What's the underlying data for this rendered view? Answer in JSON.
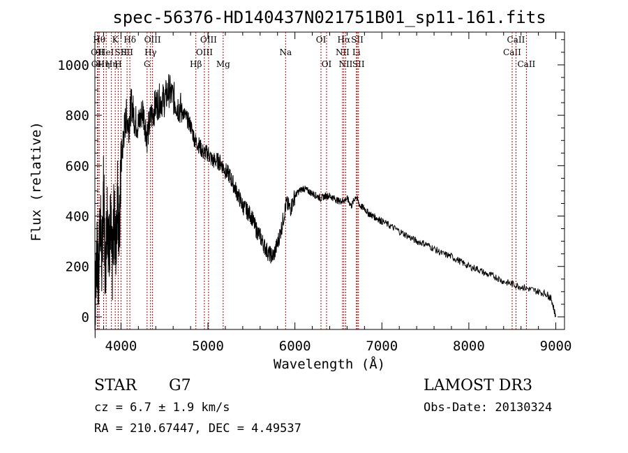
{
  "chart_data": {
    "type": "line",
    "title": "spec-56376-HD140437N021751B01_sp11-161.fits",
    "xlabel": "Wavelength (Å)",
    "ylabel": "Flux (relative)",
    "xlim": [
      3700,
      9100
    ],
    "ylim": [
      -50,
      1130
    ],
    "xticks": [
      4000,
      5000,
      6000,
      7000,
      8000,
      9000
    ],
    "yticks": [
      0,
      200,
      400,
      600,
      800,
      1000
    ],
    "grid": false,
    "line_color": "#000000",
    "marker_color": "#aa0000",
    "series": [
      {
        "x": [
          3700,
          3720,
          3740,
          3760,
          3780,
          3800,
          3820,
          3840,
          3860,
          3880,
          3900,
          3920,
          3940,
          3960,
          3980,
          4000,
          4030,
          4060,
          4090,
          4120,
          4160,
          4200,
          4250,
          4300,
          4350,
          4400,
          4450,
          4500,
          4550,
          4600,
          4650,
          4700,
          4750,
          4800,
          4850,
          4900,
          4950,
          5000,
          5050,
          5100,
          5150,
          5200,
          5250,
          5300,
          5350,
          5400,
          5450,
          5500,
          5550,
          5600,
          5650,
          5700,
          5750,
          5800,
          5850,
          5900,
          5950,
          6000,
          6050,
          6100,
          6150,
          6200,
          6250,
          6300,
          6350,
          6400,
          6450,
          6500,
          6550,
          6600,
          6650,
          6700,
          6750,
          6800,
          6850,
          6900,
          6950,
          7000,
          7100,
          7200,
          7300,
          7400,
          7500,
          7600,
          7700,
          7800,
          7900,
          8000,
          8100,
          8200,
          8300,
          8400,
          8500,
          8600,
          8700,
          8800,
          8900,
          8950,
          9000
        ],
        "y": [
          0,
          280,
          120,
          420,
          200,
          520,
          150,
          450,
          260,
          380,
          180,
          420,
          250,
          500,
          300,
          600,
          720,
          800,
          760,
          850,
          780,
          760,
          820,
          720,
          800,
          840,
          860,
          860,
          900,
          870,
          840,
          820,
          790,
          760,
          700,
          680,
          650,
          650,
          620,
          620,
          610,
          580,
          560,
          520,
          480,
          440,
          420,
          400,
          350,
          320,
          280,
          250,
          240,
          290,
          360,
          450,
          430,
          480,
          500,
          510,
          500,
          490,
          480,
          470,
          480,
          480,
          470,
          460,
          460,
          470,
          440,
          480,
          440,
          430,
          410,
          400,
          390,
          380,
          360,
          340,
          320,
          300,
          290,
          270,
          250,
          240,
          220,
          200,
          190,
          170,
          160,
          140,
          130,
          120,
          110,
          100,
          90,
          70,
          0
        ]
      }
    ],
    "line_markers": [
      {
        "wave": 3750,
        "label": "Hθ",
        "row": 1
      },
      {
        "wave": 3730,
        "label": "OII",
        "row": 2
      },
      {
        "wave": 3735,
        "label": "OII",
        "row": 3
      },
      {
        "wave": 3800,
        "label": "Hη",
        "row": 3
      },
      {
        "wave": 3830,
        "label": "HeI",
        "row": 2
      },
      {
        "wave": 3890,
        "label": "Hη",
        "row": 3
      },
      {
        "wave": 3934,
        "label": "K",
        "row": 1
      },
      {
        "wave": 3968,
        "label": "H",
        "row": 3
      },
      {
        "wave": 4000,
        "label": "SII",
        "row": 2
      },
      {
        "wave": 4102,
        "label": "Hδ",
        "row": 1
      },
      {
        "wave": 4070,
        "label": "SII",
        "row": 2
      },
      {
        "wave": 4300,
        "label": "G",
        "row": 3
      },
      {
        "wave": 4340,
        "label": "Hγ",
        "row": 2
      },
      {
        "wave": 4363,
        "label": "OIII",
        "row": 1
      },
      {
        "wave": 4861,
        "label": "Hβ",
        "row": 3
      },
      {
        "wave": 4959,
        "label": "OIII",
        "row": 2
      },
      {
        "wave": 5007,
        "label": "OIII",
        "row": 1
      },
      {
        "wave": 5175,
        "label": "Mg",
        "row": 3
      },
      {
        "wave": 5893,
        "label": "Na",
        "row": 2
      },
      {
        "wave": 6300,
        "label": "OI",
        "row": 1
      },
      {
        "wave": 6364,
        "label": "OI",
        "row": 3
      },
      {
        "wave": 6548,
        "label": "NII",
        "row": 2
      },
      {
        "wave": 6563,
        "label": "Hα",
        "row": 1
      },
      {
        "wave": 6584,
        "label": "NII",
        "row": 3
      },
      {
        "wave": 6707,
        "label": "Li",
        "row": 2
      },
      {
        "wave": 6717,
        "label": "SII",
        "row": 1
      },
      {
        "wave": 6731,
        "label": "SII",
        "row": 3
      },
      {
        "wave": 8498,
        "label": "CaII",
        "row": 2
      },
      {
        "wave": 8542,
        "label": "CaII",
        "row": 1
      },
      {
        "wave": 8662,
        "label": "CaII",
        "row": 3
      }
    ]
  },
  "info": {
    "object_class": "STAR",
    "subclass": "G7",
    "redshift": "cz = 6.7 ± 1.9 km/s",
    "coords": "RA = 210.67447, DEC =   4.49537",
    "survey": "LAMOST DR3",
    "obs_date": "Obs-Date: 20130324"
  }
}
